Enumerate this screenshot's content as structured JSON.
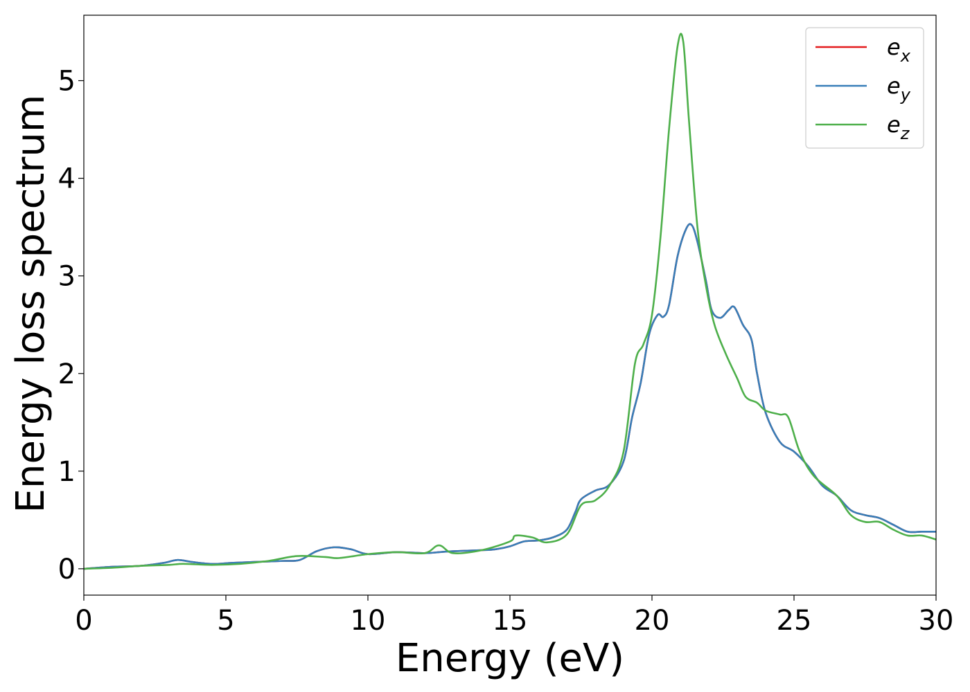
{
  "chart_data": {
    "type": "line",
    "title": "",
    "xlabel": "Energy (eV)",
    "ylabel": "Energy loss spectrum",
    "xlim": [
      0,
      30
    ],
    "ylim": [
      -0.27,
      5.67
    ],
    "xticks": [
      0,
      5,
      10,
      15,
      20,
      25,
      30
    ],
    "yticks": [
      0,
      1,
      2,
      3,
      4,
      5
    ],
    "grid": false,
    "legend_position": "top-right",
    "series": [
      {
        "name": "e_x",
        "label_main": "e",
        "label_sub": "x",
        "color": "#e41a1c",
        "x": [
          0,
          1,
          2,
          2.8,
          3.3,
          3.8,
          4.5,
          5.2,
          6,
          7,
          7.6,
          8.2,
          8.8,
          9.4,
          10,
          11,
          12,
          12.5,
          13,
          14,
          14.5,
          15,
          15.5,
          16,
          16.5,
          17,
          17.3,
          17.5,
          18,
          18.5,
          19,
          19.3,
          19.6,
          19.9,
          20.2,
          20.4,
          20.6,
          20.9,
          21.2,
          21.4,
          21.6,
          21.9,
          22.1,
          22.4,
          22.7,
          22.9,
          23.2,
          23.5,
          23.7,
          24,
          24.5,
          25,
          25.5,
          26,
          26.5,
          27,
          27.5,
          28,
          28.5,
          29,
          29.5,
          30
        ],
        "y": [
          0,
          0.02,
          0.03,
          0.06,
          0.09,
          0.07,
          0.05,
          0.06,
          0.07,
          0.08,
          0.09,
          0.18,
          0.22,
          0.2,
          0.15,
          0.17,
          0.16,
          0.17,
          0.18,
          0.19,
          0.2,
          0.23,
          0.28,
          0.29,
          0.32,
          0.4,
          0.58,
          0.71,
          0.8,
          0.86,
          1.1,
          1.55,
          1.9,
          2.4,
          2.6,
          2.58,
          2.7,
          3.2,
          3.48,
          3.52,
          3.35,
          2.95,
          2.65,
          2.57,
          2.65,
          2.68,
          2.5,
          2.35,
          2.0,
          1.6,
          1.3,
          1.2,
          1.05,
          0.85,
          0.75,
          0.6,
          0.55,
          0.52,
          0.45,
          0.38,
          0.38,
          0.38
        ]
      },
      {
        "name": "e_y",
        "label_main": "e",
        "label_sub": "y",
        "color": "#377eb8",
        "x": [
          0,
          1,
          2,
          2.8,
          3.3,
          3.8,
          4.5,
          5.2,
          6,
          7,
          7.6,
          8.2,
          8.8,
          9.4,
          10,
          11,
          12,
          12.5,
          13,
          14,
          14.5,
          15,
          15.5,
          16,
          16.5,
          17,
          17.3,
          17.5,
          18,
          18.5,
          19,
          19.3,
          19.6,
          19.9,
          20.2,
          20.4,
          20.6,
          20.9,
          21.2,
          21.4,
          21.6,
          21.9,
          22.1,
          22.4,
          22.7,
          22.9,
          23.2,
          23.5,
          23.7,
          24,
          24.5,
          25,
          25.5,
          26,
          26.5,
          27,
          27.5,
          28,
          28.5,
          29,
          29.5,
          30
        ],
        "y": [
          0,
          0.02,
          0.03,
          0.06,
          0.09,
          0.07,
          0.05,
          0.06,
          0.07,
          0.08,
          0.09,
          0.18,
          0.22,
          0.2,
          0.15,
          0.17,
          0.16,
          0.17,
          0.18,
          0.19,
          0.2,
          0.23,
          0.28,
          0.29,
          0.32,
          0.4,
          0.58,
          0.71,
          0.8,
          0.86,
          1.1,
          1.55,
          1.9,
          2.4,
          2.6,
          2.58,
          2.7,
          3.2,
          3.48,
          3.52,
          3.35,
          2.95,
          2.65,
          2.57,
          2.65,
          2.68,
          2.5,
          2.35,
          2.0,
          1.6,
          1.3,
          1.2,
          1.05,
          0.85,
          0.75,
          0.6,
          0.55,
          0.52,
          0.45,
          0.38,
          0.38,
          0.38
        ]
      },
      {
        "name": "e_z",
        "label_main": "e",
        "label_sub": "z",
        "color": "#4daf4a",
        "x": [
          0,
          1,
          2,
          3,
          3.5,
          4.5,
          5.5,
          6.5,
          7.5,
          8.5,
          9,
          10,
          11,
          12,
          12.5,
          13,
          14,
          15,
          15.2,
          15.8,
          16.3,
          17,
          17.5,
          18,
          18.5,
          19,
          19.4,
          19.7,
          20,
          20.3,
          20.6,
          20.9,
          21.1,
          21.3,
          21.6,
          21.9,
          22.2,
          22.6,
          23,
          23.3,
          23.7,
          24,
          24.5,
          24.8,
          25.2,
          25.7,
          26.5,
          27,
          27.5,
          28,
          28.5,
          29,
          29.5,
          30
        ],
        "y": [
          0,
          0.01,
          0.03,
          0.04,
          0.05,
          0.04,
          0.05,
          0.08,
          0.13,
          0.12,
          0.11,
          0.15,
          0.17,
          0.16,
          0.24,
          0.16,
          0.19,
          0.28,
          0.34,
          0.32,
          0.27,
          0.35,
          0.65,
          0.7,
          0.85,
          1.2,
          2.1,
          2.3,
          2.6,
          3.4,
          4.5,
          5.35,
          5.4,
          4.6,
          3.5,
          2.9,
          2.5,
          2.2,
          1.95,
          1.76,
          1.7,
          1.62,
          1.58,
          1.55,
          1.2,
          0.95,
          0.75,
          0.55,
          0.48,
          0.48,
          0.4,
          0.34,
          0.34,
          0.3
        ]
      }
    ]
  }
}
